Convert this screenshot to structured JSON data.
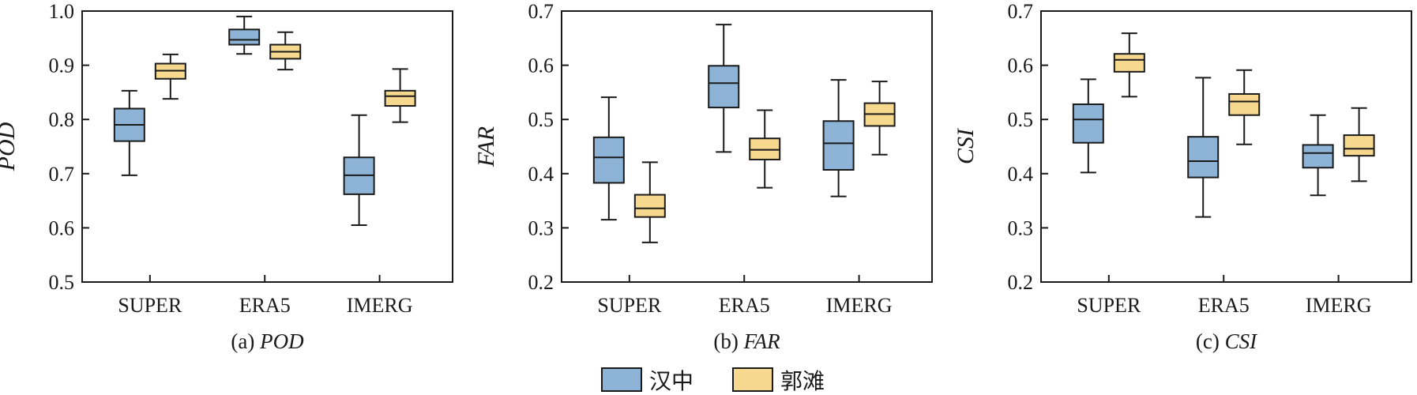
{
  "legend": [
    {
      "name": "汉中",
      "color": "#8db4d6"
    },
    {
      "name": "郭滩",
      "color": "#f7d88f"
    }
  ],
  "chart_data": [
    {
      "type": "boxplot",
      "caption_prefix": "(a)",
      "caption_metric": "POD",
      "ylabel": "POD",
      "ylim": [
        0.5,
        1.0
      ],
      "yticks": [
        "0.5",
        "0.6",
        "0.7",
        "0.8",
        "0.9",
        "1.0"
      ],
      "categories": [
        "SUPER",
        "ERA5",
        "IMERG"
      ],
      "series": [
        {
          "name": "汉中",
          "boxes": [
            {
              "min": 0.697,
              "q1": 0.76,
              "median": 0.79,
              "q3": 0.82,
              "max": 0.853
            },
            {
              "min": 0.921,
              "q1": 0.938,
              "median": 0.947,
              "q3": 0.966,
              "max": 0.99
            },
            {
              "min": 0.605,
              "q1": 0.662,
              "median": 0.697,
              "q3": 0.73,
              "max": 0.808
            }
          ]
        },
        {
          "name": "郭滩",
          "boxes": [
            {
              "min": 0.838,
              "q1": 0.875,
              "median": 0.89,
              "q3": 0.903,
              "max": 0.92
            },
            {
              "min": 0.892,
              "q1": 0.912,
              "median": 0.925,
              "q3": 0.938,
              "max": 0.961
            },
            {
              "min": 0.795,
              "q1": 0.825,
              "median": 0.843,
              "q3": 0.853,
              "max": 0.893
            }
          ]
        }
      ]
    },
    {
      "type": "boxplot",
      "caption_prefix": "(b)",
      "caption_metric": "FAR",
      "ylabel": "FAR",
      "ylim": [
        0.2,
        0.7
      ],
      "yticks": [
        "0.2",
        "0.3",
        "0.4",
        "0.5",
        "0.6",
        "0.7"
      ],
      "categories": [
        "SUPER",
        "ERA5",
        "IMERG"
      ],
      "series": [
        {
          "name": "汉中",
          "boxes": [
            {
              "min": 0.315,
              "q1": 0.383,
              "median": 0.43,
              "q3": 0.467,
              "max": 0.541
            },
            {
              "min": 0.44,
              "q1": 0.522,
              "median": 0.567,
              "q3": 0.599,
              "max": 0.675
            },
            {
              "min": 0.358,
              "q1": 0.407,
              "median": 0.456,
              "q3": 0.497,
              "max": 0.573
            }
          ]
        },
        {
          "name": "郭滩",
          "boxes": [
            {
              "min": 0.273,
              "q1": 0.32,
              "median": 0.336,
              "q3": 0.361,
              "max": 0.421
            },
            {
              "min": 0.374,
              "q1": 0.426,
              "median": 0.444,
              "q3": 0.465,
              "max": 0.517
            },
            {
              "min": 0.435,
              "q1": 0.488,
              "median": 0.51,
              "q3": 0.53,
              "max": 0.57
            }
          ]
        }
      ]
    },
    {
      "type": "boxplot",
      "caption_prefix": "(c)",
      "caption_metric": "CSI",
      "ylabel": "CSI",
      "ylim": [
        0.2,
        0.7
      ],
      "yticks": [
        "0.2",
        "0.3",
        "0.4",
        "0.5",
        "0.6",
        "0.7"
      ],
      "categories": [
        "SUPER",
        "ERA5",
        "IMERG"
      ],
      "series": [
        {
          "name": "汉中",
          "boxes": [
            {
              "min": 0.402,
              "q1": 0.457,
              "median": 0.5,
              "q3": 0.528,
              "max": 0.574
            },
            {
              "min": 0.32,
              "q1": 0.393,
              "median": 0.423,
              "q3": 0.468,
              "max": 0.577
            },
            {
              "min": 0.36,
              "q1": 0.411,
              "median": 0.438,
              "q3": 0.453,
              "max": 0.508
            }
          ]
        },
        {
          "name": "郭滩",
          "boxes": [
            {
              "min": 0.542,
              "q1": 0.588,
              "median": 0.61,
              "q3": 0.621,
              "max": 0.659
            },
            {
              "min": 0.454,
              "q1": 0.508,
              "median": 0.533,
              "q3": 0.547,
              "max": 0.591
            },
            {
              "min": 0.386,
              "q1": 0.433,
              "median": 0.446,
              "q3": 0.471,
              "max": 0.521
            }
          ]
        }
      ]
    }
  ]
}
